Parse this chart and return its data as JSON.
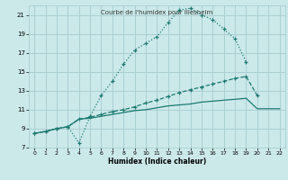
{
  "title": "Courbe de l'humidex pour Illesheim",
  "xlabel": "Humidex (Indice chaleur)",
  "xlim": [
    -0.5,
    22.5
  ],
  "ylim": [
    7,
    22
  ],
  "yticks": [
    7,
    9,
    11,
    13,
    15,
    17,
    19,
    21
  ],
  "xticks": [
    0,
    1,
    2,
    3,
    4,
    5,
    6,
    7,
    8,
    9,
    10,
    11,
    12,
    13,
    14,
    15,
    16,
    17,
    18,
    19,
    20,
    21,
    22
  ],
  "bg_color": "#cce9ea",
  "grid_color": "#aacfd1",
  "line_color": "#1a7a6e",
  "line1_x": [
    0,
    1,
    2,
    3,
    4,
    5,
    6,
    7,
    8,
    9,
    10,
    11,
    12,
    13,
    14,
    15,
    16,
    17,
    18,
    19
  ],
  "line1_y": [
    8.5,
    8.7,
    9.0,
    9.2,
    7.5,
    10.3,
    12.5,
    14.0,
    15.8,
    17.3,
    18.0,
    18.7,
    20.2,
    21.5,
    21.7,
    21.0,
    20.5,
    19.5,
    18.5,
    16.0
  ],
  "line2_x": [
    0,
    1,
    2,
    3,
    4,
    5,
    6,
    7,
    8,
    9,
    10,
    11,
    12,
    13,
    14,
    15,
    16,
    17,
    18,
    19,
    20,
    21,
    22
  ],
  "line2_y": [
    8.5,
    8.7,
    9.0,
    9.2,
    10.0,
    10.2,
    10.5,
    10.8,
    11.0,
    11.3,
    11.7,
    12.0,
    12.4,
    12.8,
    13.1,
    13.4,
    13.7,
    14.0,
    14.3,
    14.5,
    12.5,
    null,
    null
  ],
  "line3_x": [
    0,
    1,
    2,
    3,
    4,
    5,
    6,
    7,
    8,
    9,
    10,
    11,
    12,
    13,
    14,
    15,
    16,
    17,
    18,
    19,
    20,
    21,
    22
  ],
  "line3_y": [
    8.5,
    8.7,
    9.0,
    9.2,
    10.0,
    10.1,
    10.3,
    10.5,
    10.7,
    10.9,
    11.0,
    11.2,
    11.4,
    11.5,
    11.6,
    11.8,
    11.9,
    12.0,
    12.1,
    12.2,
    11.1,
    11.1,
    11.1
  ]
}
